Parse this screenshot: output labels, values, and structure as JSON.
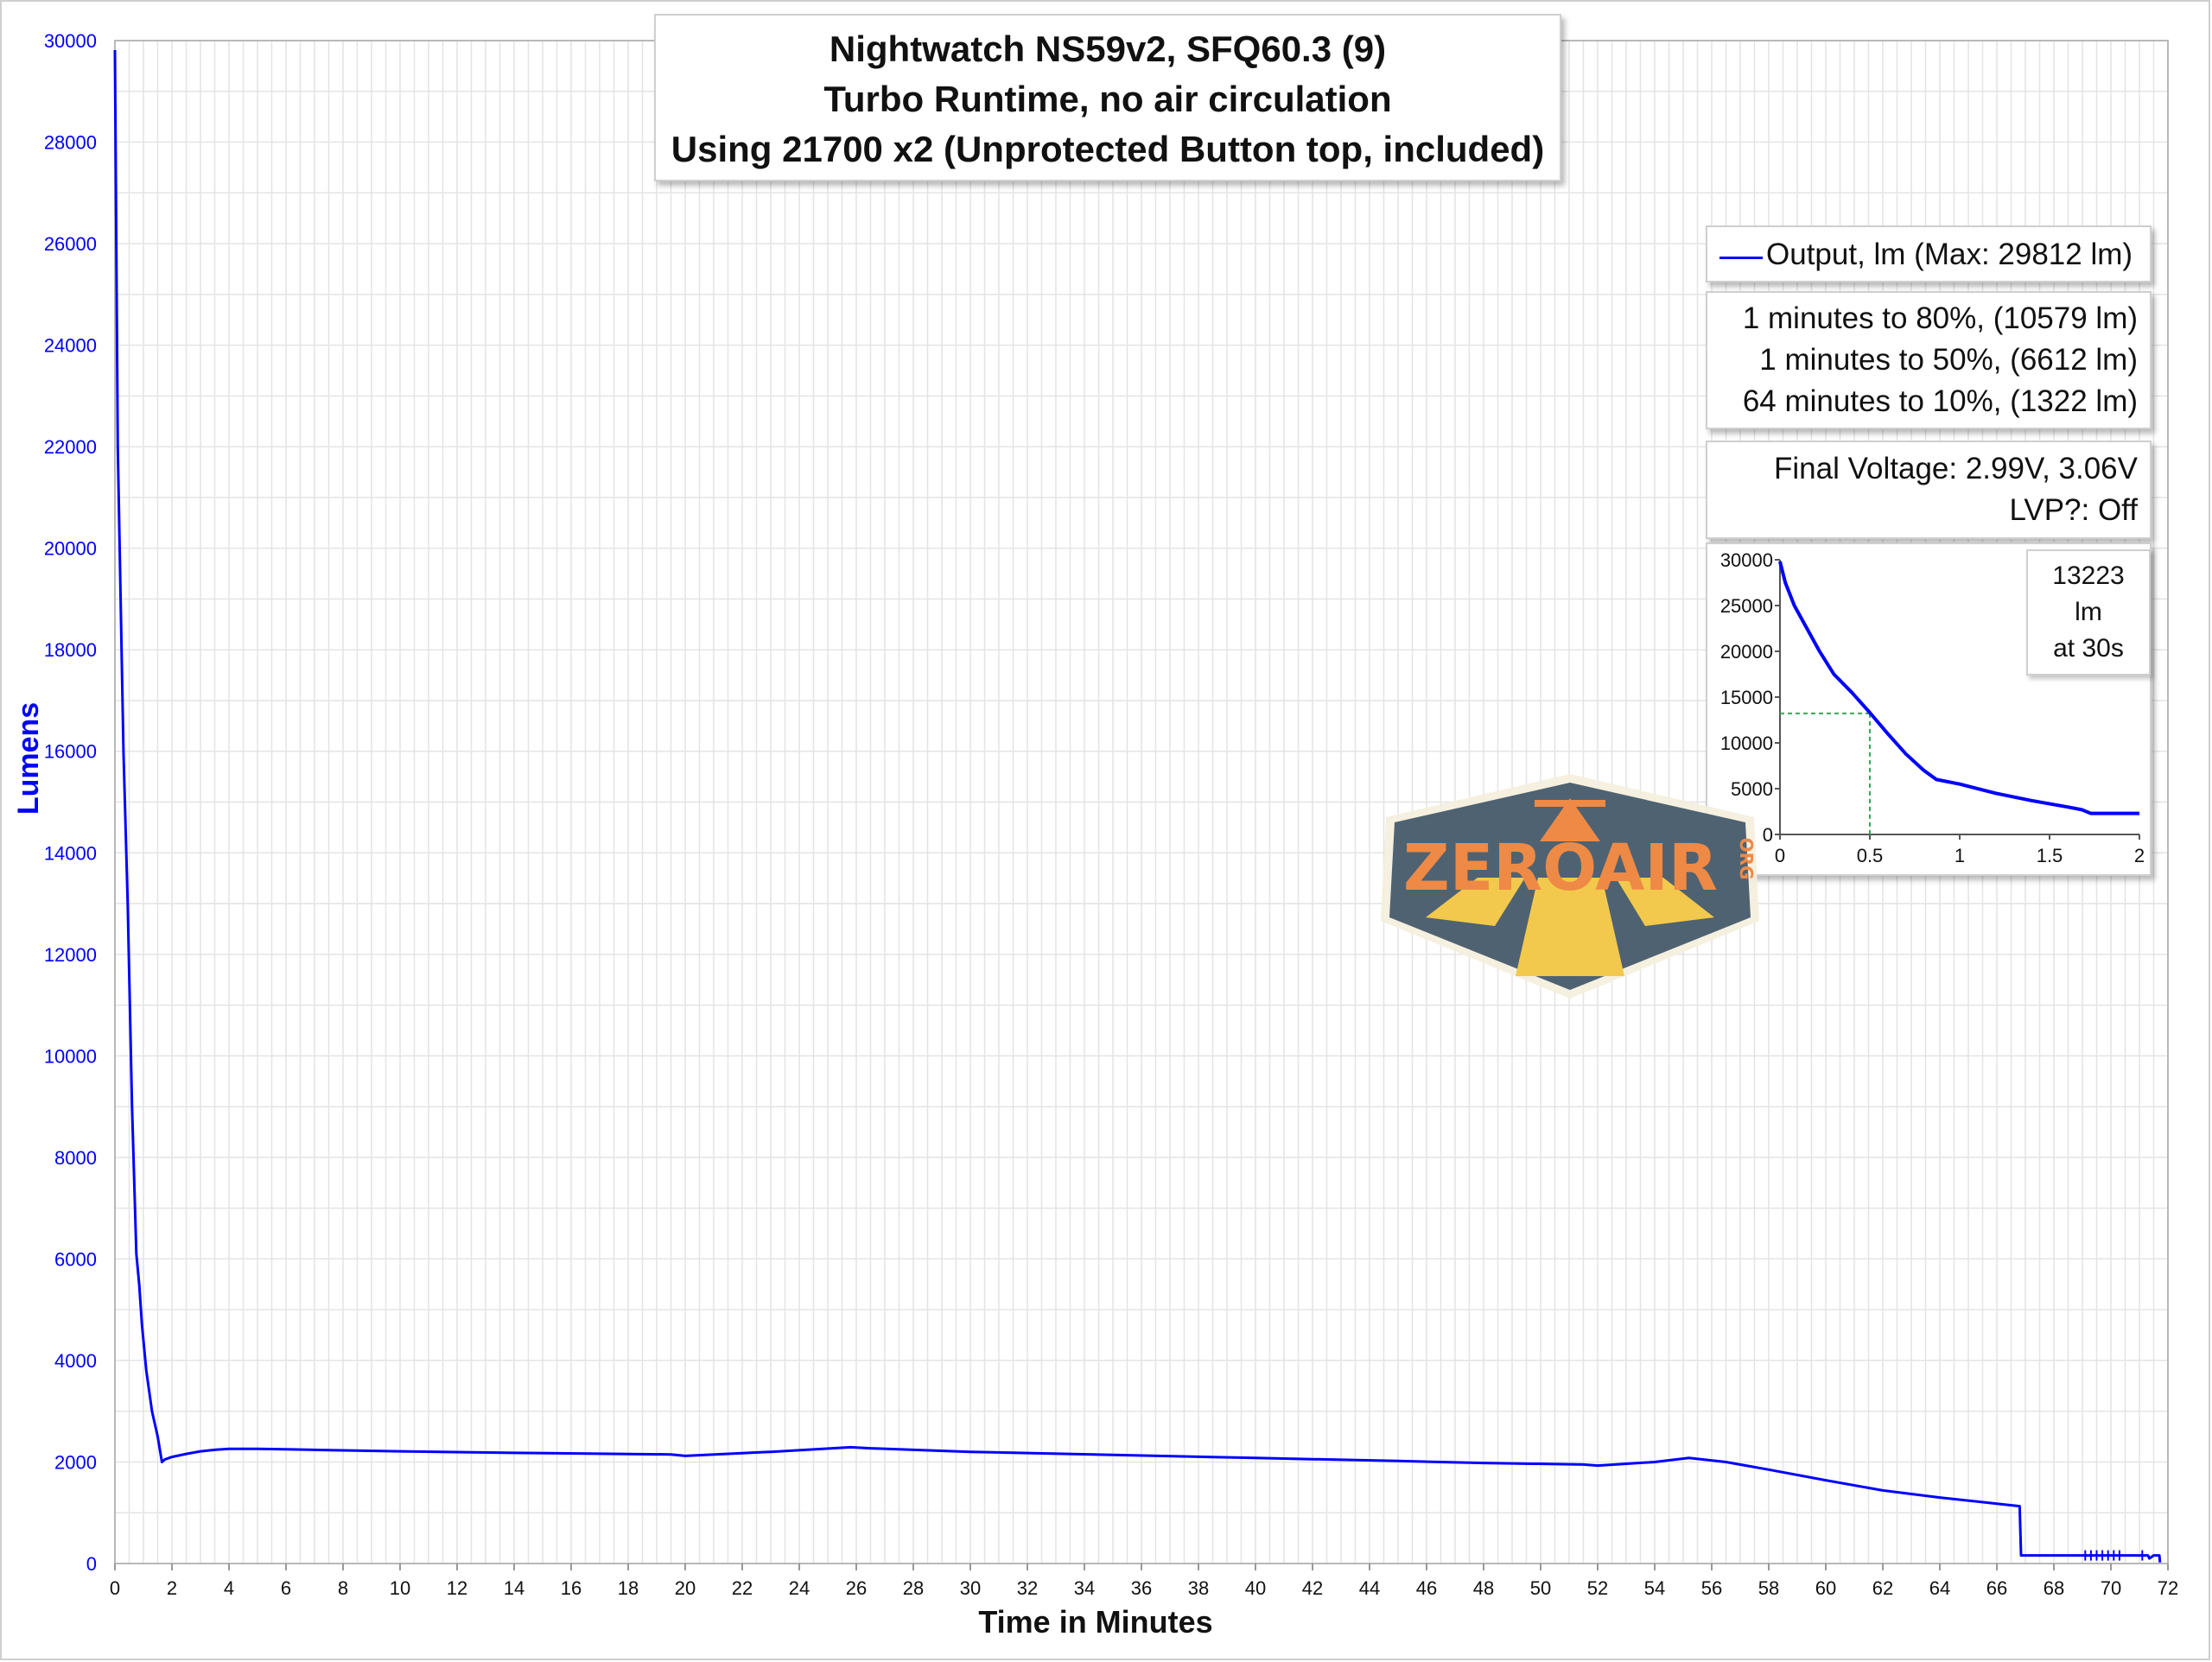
{
  "title": {
    "line1": "Nightwatch NS59v2, SFQ60.3 (9)",
    "line2": "Turbo Runtime, no air circulation",
    "line3": "Using 21700 x2 (Unprotected Button top, included)"
  },
  "legend": {
    "series_label": "Output, lm (Max: 29812 lm)"
  },
  "stats": {
    "line1": "1 minutes to 80%, (10579 lm)",
    "line2": "1 minutes to 50%, (6612 lm)",
    "line3": "64 minutes to 10%, (1322 lm)"
  },
  "voltage": {
    "line1": "Final Voltage:  2.99V, 3.06V",
    "line2": "LVP?:  Off"
  },
  "inset_note": {
    "line1": "13223",
    "line2": "lm",
    "line3": "at 30s"
  },
  "logo": {
    "text": "ZEROAIR",
    "suffix": "ORG"
  },
  "colors": {
    "series": "#0000ff",
    "axis_text": "#0000ff",
    "grid": "#e4e4e4",
    "logo_bg": "#4f6272",
    "logo_text": "#ee8a45",
    "logo_road": "#f2c94c"
  },
  "chart_data": [
    {
      "type": "line",
      "xlabel": "Time in Minutes",
      "ylabel": "Lumens",
      "xlim": [
        0,
        72
      ],
      "ylim": [
        0,
        30000
      ],
      "xticks": [
        0,
        2,
        4,
        6,
        8,
        10,
        12,
        14,
        16,
        18,
        20,
        22,
        24,
        26,
        28,
        30,
        32,
        34,
        36,
        38,
        40,
        42,
        44,
        46,
        48,
        50,
        52,
        54,
        56,
        58,
        60,
        62,
        64,
        66,
        68,
        70,
        72
      ],
      "yticks": [
        0,
        2000,
        4000,
        6000,
        8000,
        10000,
        12000,
        14000,
        16000,
        18000,
        20000,
        22000,
        24000,
        26000,
        28000,
        30000
      ],
      "grid": true,
      "legend_position": "top-right",
      "series": [
        {
          "name": "Output, lm (Max: 29812 lm)",
          "x": [
            0,
            0.1,
            0.3,
            0.45,
            0.6,
            0.75,
            0.85,
            0.95,
            1.1,
            1.3,
            1.5,
            1.65,
            1.75,
            2.0,
            2.5,
            3.0,
            3.5,
            4.0,
            5.0,
            6.0,
            8.0,
            10.0,
            14.0,
            19.5,
            20.0,
            23.0,
            25.8,
            26.5,
            30.0,
            35.0,
            40.0,
            45.0,
            48.0,
            51.5,
            52.0,
            54.0,
            55.2,
            56.5,
            58.0,
            60.0,
            62.0,
            64.0,
            66.0,
            66.8,
            66.85,
            67.5,
            68.0,
            69.0,
            69.8,
            70.5,
            71.3,
            71.35,
            71.5,
            71.7,
            71.72
          ],
          "values": [
            29812,
            22000,
            16000,
            13000,
            9000,
            6100,
            5500,
            4700,
            3800,
            3000,
            2500,
            2000,
            2050,
            2100,
            2160,
            2210,
            2240,
            2260,
            2260,
            2250,
            2230,
            2210,
            2180,
            2150,
            2120,
            2200,
            2290,
            2270,
            2200,
            2140,
            2080,
            2020,
            1980,
            1950,
            1930,
            2000,
            2080,
            2000,
            1850,
            1640,
            1440,
            1300,
            1180,
            1130,
            160,
            160,
            160,
            160,
            160,
            160,
            160,
            100,
            160,
            160,
            20
          ]
        }
      ]
    },
    {
      "type": "line",
      "xlim": [
        0,
        2
      ],
      "ylim": [
        0,
        30000
      ],
      "xticks": [
        0,
        0.5,
        1,
        1.5,
        2
      ],
      "xtick_labels": [
        "0",
        "0.5",
        "1",
        "1.5",
        "2"
      ],
      "yticks": [
        0,
        5000,
        10000,
        15000,
        20000,
        25000,
        30000
      ],
      "ytick_labels": [
        "0",
        "5000",
        "10000",
        "15000",
        "20000",
        "25000",
        "30000"
      ],
      "grid": false,
      "marker": {
        "x": 0.5,
        "y": 13223
      },
      "series": [
        {
          "x": [
            0,
            0.03,
            0.08,
            0.15,
            0.22,
            0.3,
            0.4,
            0.5,
            0.6,
            0.7,
            0.8,
            0.87,
            1.0,
            1.2,
            1.4,
            1.6,
            1.68,
            1.73,
            1.8,
            2.0
          ],
          "values": [
            29812,
            27500,
            25000,
            22500,
            20000,
            17500,
            15500,
            13300,
            11000,
            8800,
            7000,
            6000,
            5500,
            4500,
            3700,
            3000,
            2700,
            2300,
            2300,
            2300
          ]
        }
      ]
    }
  ]
}
